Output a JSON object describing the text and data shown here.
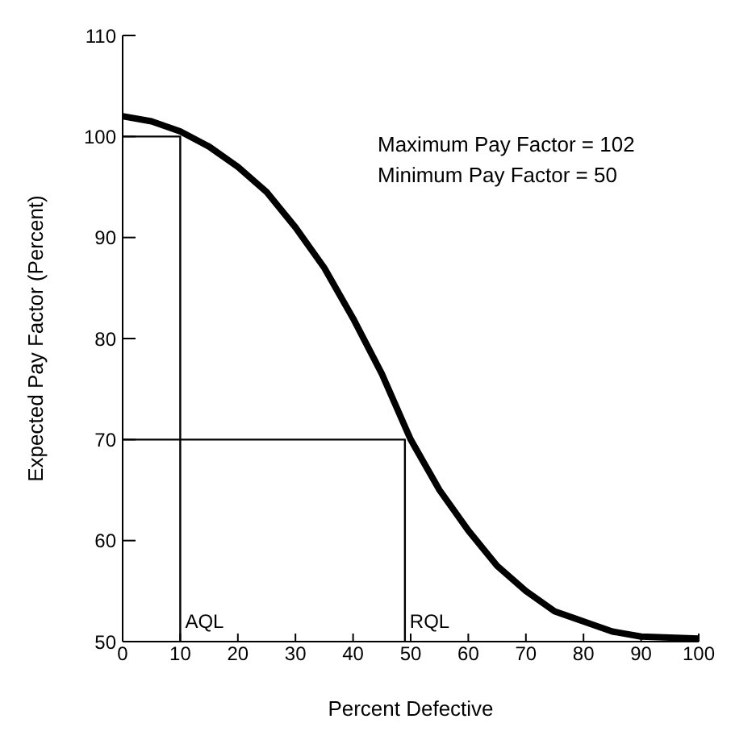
{
  "chart_data": {
    "type": "line",
    "xlabel": "Percent Defective",
    "ylabel": "Expected Pay Factor (Percent)",
    "xlim": [
      0,
      100
    ],
    "xticks": [
      0,
      10,
      20,
      30,
      40,
      50,
      60,
      70,
      80,
      90,
      100
    ],
    "ylim": [
      50,
      110
    ],
    "yticks": [
      50,
      60,
      70,
      80,
      90,
      100,
      110
    ],
    "grid": false,
    "marker": "none",
    "line_style": "solid",
    "series": [
      {
        "color": "#000000",
        "x": [
          0,
          5,
          10,
          15,
          20,
          25,
          30,
          35,
          40,
          45,
          50,
          55,
          60,
          65,
          70,
          75,
          80,
          85,
          90,
          95,
          100
        ],
        "values": [
          102,
          101.5,
          100.5,
          99,
          97,
          94.5,
          91,
          87,
          82,
          76.5,
          70,
          65,
          61,
          57.5,
          55,
          53,
          52,
          51,
          50.5,
          50.4,
          50.3
        ]
      },
      {
        "color": "#000000",
        "x": [
          0,
          10,
          10
        ],
        "values": [
          100,
          100,
          50
        ]
      },
      {
        "color": "#000000",
        "x": [
          0,
          49,
          49
        ],
        "values": [
          70,
          70,
          50
        ]
      }
    ],
    "annotations": [
      "Maximum Pay Factor = 102",
      "Minimum Pay Factor = 50",
      {
        "text": "AQL",
        "x": 10,
        "y": 52
      },
      {
        "text": "RQL",
        "x": 49,
        "y": 52
      }
    ]
  }
}
